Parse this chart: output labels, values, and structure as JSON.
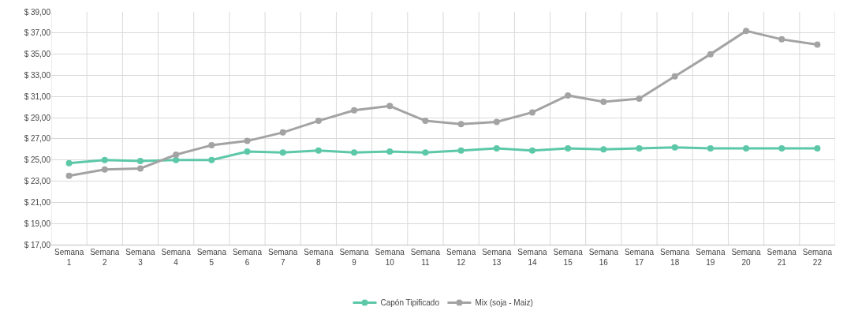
{
  "chart_data": {
    "type": "line",
    "categories": [
      "Semana 1",
      "Semana 2",
      "Semana 3",
      "Semana 4",
      "Semana 5",
      "Semana 6",
      "Semana 7",
      "Semana 8",
      "Semana 9",
      "Semana 10",
      "Semana 11",
      "Semana 12",
      "Semana 13",
      "Semana 14",
      "Semana 15",
      "Semana 16",
      "Semana 17",
      "Semana 18",
      "Semana 19",
      "Semana 20",
      "Semana 21",
      "Semana 22"
    ],
    "series": [
      {
        "name": "Capón Tipificado",
        "color": "#5cc8a8",
        "values": [
          24.7,
          25.0,
          24.9,
          25.0,
          25.0,
          25.8,
          25.7,
          25.9,
          25.7,
          25.8,
          25.7,
          25.9,
          26.1,
          25.9,
          26.1,
          26.0,
          26.1,
          26.2,
          26.1,
          26.1,
          26.1,
          26.1
        ]
      },
      {
        "name": "Mix (soja - Maiz)",
        "color": "#a3a3a3",
        "values": [
          23.5,
          24.1,
          24.2,
          25.5,
          26.4,
          26.8,
          27.6,
          28.7,
          29.7,
          30.1,
          28.7,
          28.4,
          28.6,
          29.5,
          31.1,
          30.5,
          30.8,
          32.9,
          35.0,
          37.2,
          36.4,
          35.9
        ]
      }
    ],
    "ylim": [
      17,
      39
    ],
    "yticks": [
      {
        "value": 17,
        "label": "$ 17,00"
      },
      {
        "value": 19,
        "label": "$ 19,00"
      },
      {
        "value": 21,
        "label": "$ 21,00"
      },
      {
        "value": 23,
        "label": "$ 23,00"
      },
      {
        "value": 25,
        "label": "$ 25,00"
      },
      {
        "value": 27,
        "label": "$ 27,00"
      },
      {
        "value": 29,
        "label": "$ 29,00"
      },
      {
        "value": 31,
        "label": "$ 31,00"
      },
      {
        "value": 33,
        "label": "$ 33,00"
      },
      {
        "value": 35,
        "label": "$ 35,00"
      },
      {
        "value": 37,
        "label": "$ 37,00"
      },
      {
        "value": 39,
        "label": "$ 39,00"
      }
    ],
    "grid": true,
    "legend": "bottom",
    "marker": "circle",
    "line_style": "solid"
  }
}
